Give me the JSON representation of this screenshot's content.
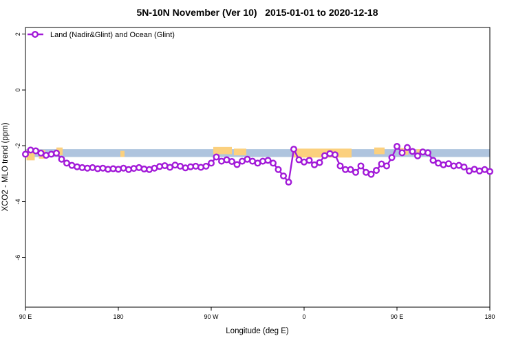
{
  "chart_data": {
    "type": "line",
    "title": "5N-10N November (Ver 10)   2015-01-01 to 2020-12-18",
    "xlabel": "Longitude (deg E)",
    "ylabel": "XCO2 - MLO trend (ppm)",
    "legend_position": "top-left",
    "grid": false,
    "xlim": [
      90,
      540
    ],
    "ylim": [
      -7.78,
      2.24
    ],
    "x_ticks": [
      {
        "value": 90,
        "label": "90 E"
      },
      {
        "value": 180,
        "label": "180"
      },
      {
        "value": 270,
        "label": "90 W"
      },
      {
        "value": 360,
        "label": "0"
      },
      {
        "value": 450,
        "label": "90 E"
      },
      {
        "value": 540,
        "label": "180"
      }
    ],
    "y_ticks": [
      {
        "value": 2,
        "label": "2"
      },
      {
        "value": 0,
        "label": "0"
      },
      {
        "value": -2,
        "label": "-2"
      },
      {
        "value": -4,
        "label": "-4"
      },
      {
        "value": -6,
        "label": "-6"
      }
    ],
    "legend": [
      {
        "label": "Land (Nadir&Glint) and Ocean (Glint)",
        "color": "#A21AD8",
        "marker": "open-circle"
      }
    ],
    "bands": [
      {
        "name": "blue-reference-band",
        "color": "#AFC4DE",
        "x": [
          90,
          540
        ],
        "y": [
          -2.12,
          -2.4
        ]
      }
    ],
    "orange_segments": [
      {
        "x": [
          91,
          99
        ],
        "y": [
          -2.14,
          -2.52
        ]
      },
      {
        "x": [
          103,
          109
        ],
        "y": [
          -2.14,
          -2.46
        ]
      },
      {
        "x": [
          120,
          126
        ],
        "y": [
          -2.06,
          -2.34
        ]
      },
      {
        "x": [
          182,
          186
        ],
        "y": [
          -2.18,
          -2.4
        ]
      },
      {
        "x": [
          272,
          290
        ],
        "y": [
          -2.04,
          -2.3
        ]
      },
      {
        "x": [
          292,
          304
        ],
        "y": [
          -2.1,
          -2.34
        ]
      },
      {
        "x": [
          350,
          406
        ],
        "y": [
          -2.1,
          -2.42
        ]
      },
      {
        "x": [
          428,
          438
        ],
        "y": [
          -2.06,
          -2.3
        ]
      },
      {
        "x": [
          452,
          461
        ],
        "y": [
          -2.08,
          -2.32
        ]
      },
      {
        "x": [
          469,
          477
        ],
        "y": [
          -2.12,
          -2.32
        ]
      }
    ],
    "orange_color": "#FBD07E",
    "series": [
      {
        "name": "Land (Nadir&Glint) and Ocean (Glint)",
        "color": "#A21AD8",
        "marker": "open-circle",
        "x": [
          90,
          95,
          100,
          105,
          110,
          115,
          120,
          125,
          130,
          135,
          140,
          145,
          150,
          155,
          160,
          165,
          170,
          175,
          180,
          185,
          190,
          195,
          200,
          205,
          210,
          215,
          220,
          225,
          230,
          235,
          240,
          245,
          250,
          255,
          260,
          265,
          270,
          275,
          280,
          285,
          290,
          295,
          300,
          305,
          310,
          315,
          320,
          325,
          330,
          335,
          340,
          345,
          350,
          355,
          360,
          365,
          370,
          375,
          380,
          385,
          390,
          395,
          400,
          405,
          410,
          415,
          420,
          425,
          430,
          435,
          440,
          445,
          450,
          455,
          460,
          465,
          470,
          475,
          480,
          485,
          490,
          495,
          500,
          505,
          510,
          515,
          520,
          525,
          530,
          535,
          540
        ],
        "y": [
          -2.3,
          -2.15,
          -2.18,
          -2.26,
          -2.34,
          -2.3,
          -2.26,
          -2.48,
          -2.62,
          -2.7,
          -2.75,
          -2.78,
          -2.8,
          -2.78,
          -2.82,
          -2.8,
          -2.84,
          -2.82,
          -2.84,
          -2.8,
          -2.85,
          -2.81,
          -2.78,
          -2.83,
          -2.85,
          -2.8,
          -2.74,
          -2.71,
          -2.77,
          -2.69,
          -2.73,
          -2.79,
          -2.75,
          -2.73,
          -2.77,
          -2.73,
          -2.62,
          -2.4,
          -2.55,
          -2.5,
          -2.56,
          -2.67,
          -2.55,
          -2.48,
          -2.55,
          -2.62,
          -2.55,
          -2.52,
          -2.62,
          -2.85,
          -3.08,
          -3.3,
          -2.12,
          -2.5,
          -2.58,
          -2.52,
          -2.68,
          -2.6,
          -2.35,
          -2.28,
          -2.32,
          -2.72,
          -2.85,
          -2.85,
          -2.95,
          -2.72,
          -2.95,
          -3.02,
          -2.88,
          -2.65,
          -2.72,
          -2.42,
          -2.02,
          -2.25,
          -2.06,
          -2.2,
          -2.36,
          -2.22,
          -2.25,
          -2.52,
          -2.62,
          -2.68,
          -2.64,
          -2.72,
          -2.7,
          -2.76,
          -2.9,
          -2.84,
          -2.9,
          -2.85,
          -2.92
        ]
      }
    ]
  }
}
